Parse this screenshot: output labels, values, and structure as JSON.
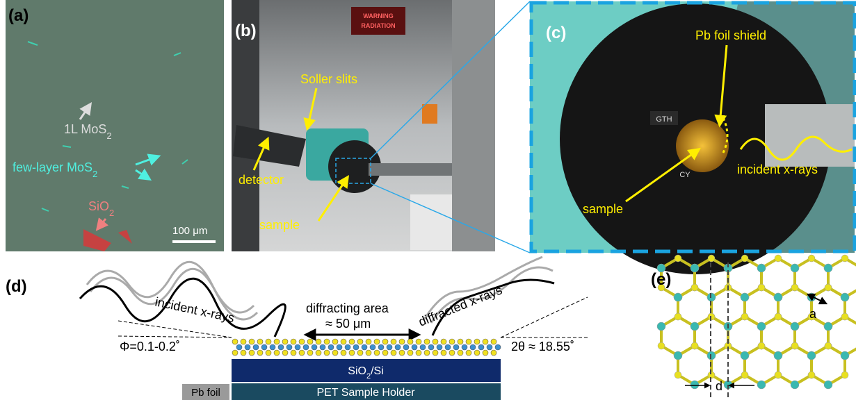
{
  "panel_a": {
    "label": "(a)",
    "monolayer": {
      "text": "1L MoS",
      "sub": "2"
    },
    "few_layer": {
      "text": "few-layer MoS",
      "sub": "2"
    },
    "substrate": {
      "text": "SiO",
      "sub": "2"
    },
    "scale_bar": "100 μm"
  },
  "panel_b": {
    "label": "(b)",
    "sign": [
      "WARNING",
      "RADIATION"
    ],
    "soller": "Soller slits",
    "detector": "detector",
    "sample": "sample"
  },
  "panel_c": {
    "label": "(c)",
    "shield": "Pb foil shield",
    "incident": "incident x-rays",
    "sample": "sample",
    "tags": [
      "GTH",
      "CY"
    ]
  },
  "panel_d": {
    "label": "(d)",
    "incident": "incident x-rays",
    "area": "diffracting area",
    "area_size": "≈ 50 μm",
    "diffracted": "diffracted x-rays",
    "phi": "Φ=0.1-0.2˚",
    "two_theta": "2θ ≈ 18.55˚",
    "substrate": {
      "text": "SiO",
      "sub": "2",
      "rest": "/Si"
    },
    "holder": "PET Sample Holder",
    "foil": "Pb foil"
  },
  "panel_e": {
    "label": "(e)",
    "a": "a",
    "d": "d"
  }
}
